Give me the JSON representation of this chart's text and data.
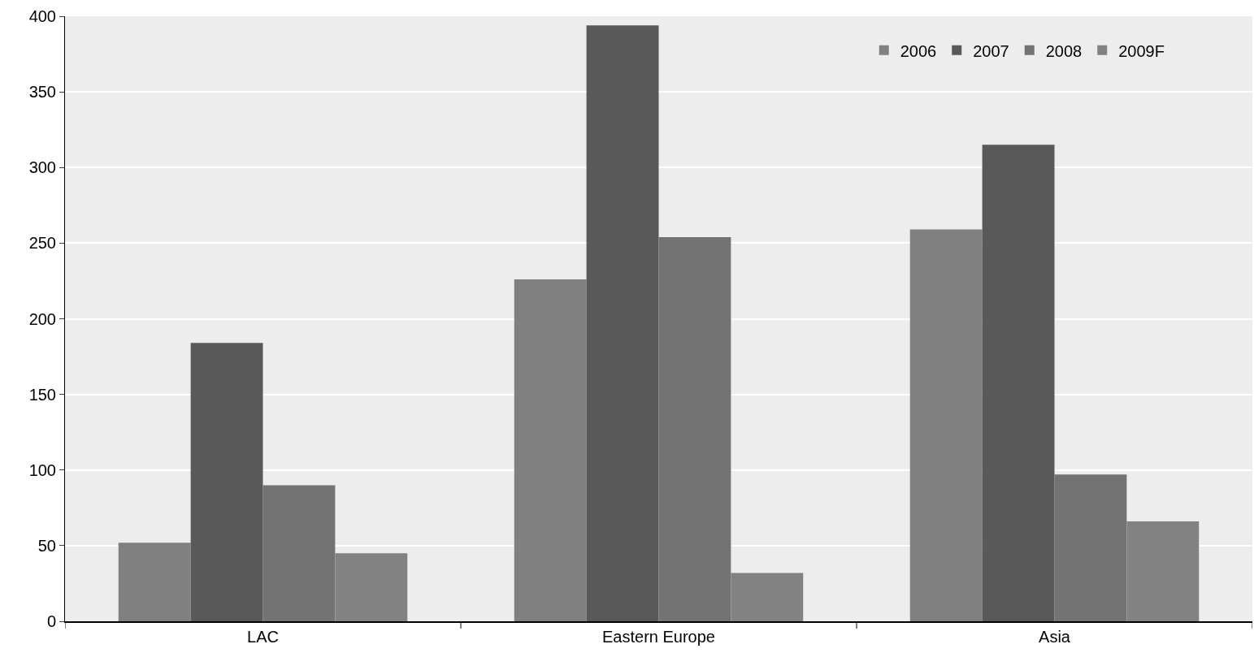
{
  "chart_data": {
    "type": "bar",
    "categories": [
      "LAC",
      "Eastern Europe",
      "Asia"
    ],
    "series": [
      {
        "name": "2006",
        "color": "#808080",
        "values": [
          52,
          226,
          259
        ]
      },
      {
        "name": "2007",
        "color": "#595959",
        "values": [
          184,
          394,
          315
        ]
      },
      {
        "name": "2008",
        "color": "#737373",
        "values": [
          90,
          254,
          97
        ]
      },
      {
        "name": "2009F",
        "color": "#828282",
        "values": [
          45,
          32,
          66
        ]
      }
    ],
    "ylim": [
      0,
      400
    ],
    "yticks": [
      0,
      50,
      100,
      150,
      200,
      250,
      300,
      350,
      400
    ],
    "grid": "y",
    "legend": "top right"
  }
}
